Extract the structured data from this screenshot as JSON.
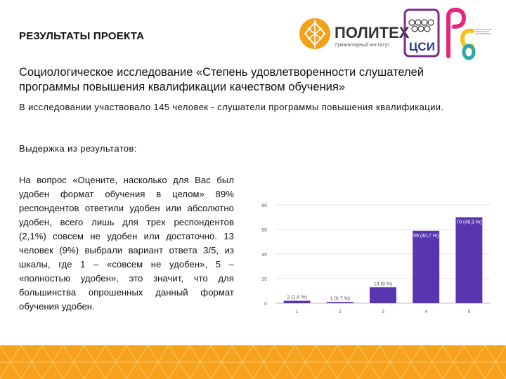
{
  "header": {
    "title": "РЕЗУЛЬТАТЫ ПРОЕКТА"
  },
  "logos": {
    "politech_name": "ПОЛИТЕХ",
    "politech_sub": "Гуманитарный институт",
    "csi_text": "ЦСИ",
    "brand_orange": "#F4A11A",
    "csi_purple": "#7A2D8C",
    "rso_pink": "#E6267A",
    "rso_yellow": "#F6C21A",
    "rso_teal": "#2AA7A8"
  },
  "main": {
    "title": "Социологическое исследование «Степень удовлетворенности слушателей программы повышения квалификации качеством обучения»",
    "intro": "В исследовании участвовало 145 человек - слушатели программы повышения квалификации.",
    "excerpt_label": "Выдержка из результатов:",
    "body": "На вопрос «Оцените, насколько для Вас был удобен формат обучения в целом» 89% респондентов ответили удобен или абсолютно удобен, всего лишь для трех респондентов (2,1%) совсем не удобен или достаточно. 13 человек (9%) выбрали вариант ответа 3/5, из шкалы, где 1 – «совсем не удобен», 5 – «полностью удобен», это значит, что для большинства опрошенных данный формат обучения удобен."
  },
  "chart_data": {
    "type": "bar",
    "categories": [
      "1",
      "2",
      "3",
      "4",
      "5"
    ],
    "values": [
      2,
      1,
      13,
      59,
      70
    ],
    "data_labels": [
      "2 (1,4 %)",
      "1 (0,7 %)",
      "13 (9 %)",
      "59 (40,7 %)",
      "70 (48,3 %)"
    ],
    "yticks": [
      "0",
      "20",
      "40",
      "60",
      "80"
    ],
    "ylim": [
      0,
      80
    ],
    "bar_color": "#5A35B0",
    "grid": true
  },
  "footer": {
    "color": "#F6A21E"
  }
}
